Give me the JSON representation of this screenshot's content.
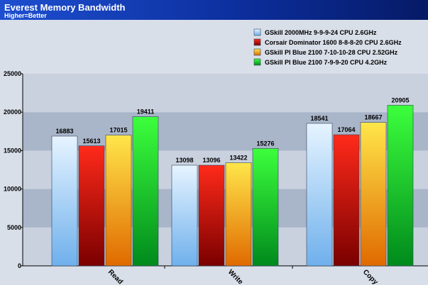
{
  "chart_data": {
    "type": "bar",
    "title": "Everest Memory Bandwidth",
    "subtitle": "Higher=Better",
    "categories": [
      "Read",
      "Write",
      "Copy"
    ],
    "series": [
      {
        "name": "GSkill 2000MHz 9-9-9-24 CPU 2.6GHz",
        "values": [
          16883,
          13098,
          18541
        ],
        "color": "#9fd0f4"
      },
      {
        "name": "Corsair Dominator 1600 8-8-8-20 CPU 2.6GHz",
        "values": [
          15613,
          13096,
          17064
        ],
        "color": "#d81010"
      },
      {
        "name": "GSkill PI Blue 2100 7-10-10-28 CPU 2.52GHz",
        "values": [
          17015,
          13422,
          18667
        ],
        "color": "#f4b21a"
      },
      {
        "name": "GSkill PI Blue 2100 7-9-9-20 CPU 4.2GHz",
        "values": [
          19411,
          15276,
          20905
        ],
        "color": "#1ec21e"
      }
    ],
    "yticks": [
      0,
      5000,
      10000,
      15000,
      20000,
      25000
    ],
    "ylim": [
      0,
      25000
    ],
    "grid": true,
    "legend_position": "top-right",
    "header_color": "#0a2a8c"
  }
}
